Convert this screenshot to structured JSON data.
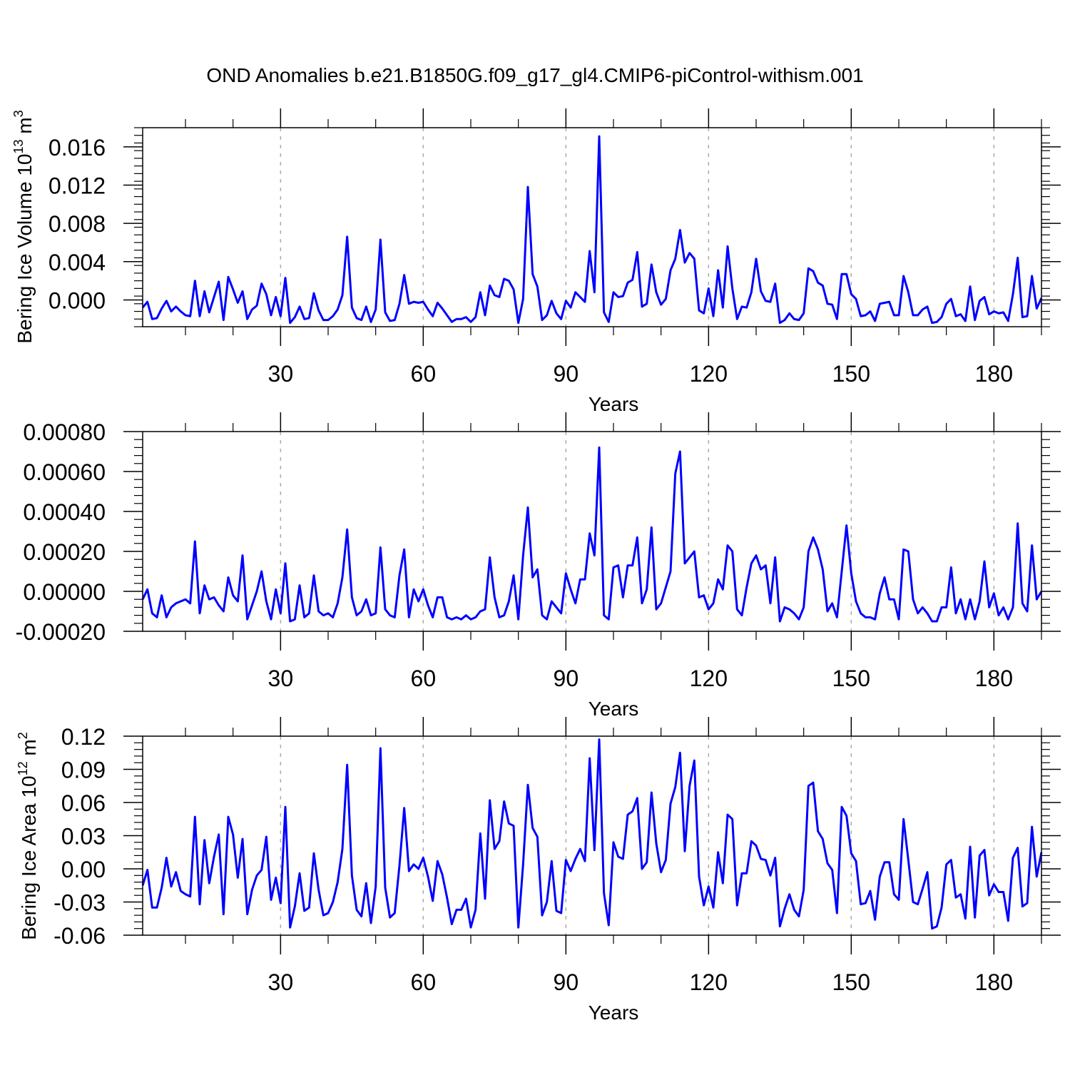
{
  "figure": {
    "title": "OND Anomalies b.e21.B1850G.f09_g17_gl4.CMIP6-piControl-withism.001",
    "line_color": "#0000ff",
    "grid_color": "#aaaaaa"
  },
  "chart_data": [
    {
      "type": "line",
      "ylabel_main": "Bering Ice Volume 10",
      "ylabel_exp": "13",
      "ylabel_unit": "m",
      "ylabel_unit_exp": "3",
      "xlabel": "Years",
      "xlim": [
        1,
        190
      ],
      "ylim": [
        -0.0028,
        0.018
      ],
      "xticks": [
        30,
        60,
        90,
        120,
        150,
        180
      ],
      "xtick_labels": [
        "30",
        "60",
        "90",
        "120",
        "150",
        "180"
      ],
      "yticks": [
        0.0,
        0.004,
        0.008,
        0.012,
        0.016
      ],
      "ytick_labels": [
        "0.000",
        "0.004",
        "0.008",
        "0.012",
        "0.016"
      ],
      "grid": "vertical dashed at major x ticks",
      "series": [
        {
          "x_start": 1,
          "values": [
            -0.0008,
            -0.0002,
            -0.002,
            -0.0019,
            -0.0009,
            -0.0001,
            -0.0012,
            -0.0007,
            -0.0012,
            -0.0016,
            -0.0017,
            0.002,
            -0.0017,
            0.0009,
            -0.0013,
            0.0003,
            0.0019,
            -0.0021,
            0.0024,
            0.0011,
            -0.0003,
            0.0009,
            -0.002,
            -0.001,
            -0.0006,
            0.0017,
            0.0006,
            -0.0016,
            0.0003,
            -0.0017,
            0.0023,
            -0.0024,
            -0.0018,
            -0.0007,
            -0.002,
            -0.0019,
            0.0007,
            -0.0011,
            -0.0021,
            -0.0021,
            -0.0017,
            -0.001,
            0.0005,
            0.0066,
            -0.0008,
            -0.0019,
            -0.0021,
            -0.0007,
            -0.0023,
            -0.001,
            0.0063,
            -0.0013,
            -0.0022,
            -0.0021,
            -0.0004,
            0.0026,
            -0.0004,
            -0.0002,
            -0.0003,
            -0.0002,
            -0.001,
            -0.0017,
            -0.0003,
            -0.0009,
            -0.0016,
            -0.0023,
            -0.002,
            -0.002,
            -0.0018,
            -0.0023,
            -0.0018,
            0.0008,
            -0.0016,
            0.0015,
            0.0005,
            0.0003,
            0.0022,
            0.002,
            0.0011,
            -0.0024,
            0.0001,
            0.0118,
            0.0027,
            0.0014,
            -0.0021,
            -0.0016,
            -0.0001,
            -0.0014,
            -0.002,
            -0.0001,
            -0.0008,
            0.0008,
            0.0003,
            -0.0002,
            0.0051,
            0.0008,
            0.0171,
            -0.0013,
            -0.0023,
            0.0008,
            0.0003,
            0.0004,
            0.0018,
            0.0021,
            0.005,
            -0.0007,
            -0.0004,
            0.0037,
            0.0008,
            -0.0005,
            0.0001,
            0.0031,
            0.0043,
            0.0073,
            0.0039,
            0.0049,
            0.0043,
            -0.0011,
            -0.0014,
            0.0012,
            -0.0017,
            0.0031,
            -0.0008,
            0.0056,
            0.0012,
            -0.002,
            -0.0007,
            -0.0008,
            0.0008,
            0.0043,
            0.0009,
            -0.0001,
            -0.0002,
            0.0017,
            -0.0024,
            -0.0021,
            -0.0014,
            -0.002,
            -0.0021,
            -0.0014,
            0.0033,
            0.003,
            0.0018,
            0.0015,
            -0.0004,
            -0.0005,
            -0.002,
            0.0027,
            0.0027,
            0.0006,
            0.0001,
            -0.0017,
            -0.0016,
            -0.0012,
            -0.0022,
            -0.0004,
            -0.0003,
            -0.0002,
            -0.0016,
            -0.0016,
            0.0025,
            0.0008,
            -0.0016,
            -0.0016,
            -0.001,
            -0.0007,
            -0.0024,
            -0.0023,
            -0.0018,
            -0.0004,
            0.0001,
            -0.0017,
            -0.0015,
            -0.0022,
            0.0014,
            -0.0021,
            -0.0001,
            0.0003,
            -0.0015,
            -0.0012,
            -0.0014,
            -0.0013,
            -0.0022,
            0.0006,
            0.0044,
            -0.0018,
            -0.0017,
            0.0025,
            -0.0009,
            0.0002
          ]
        }
      ]
    },
    {
      "type": "line",
      "ylabel_main": "",
      "xlabel": "Years",
      "xlim": [
        1,
        190
      ],
      "ylim": [
        -0.0002,
        0.0008
      ],
      "xticks": [
        30,
        60,
        90,
        120,
        150,
        180
      ],
      "xtick_labels": [
        "30",
        "60",
        "90",
        "120",
        "150",
        "180"
      ],
      "yticks": [
        -0.0002,
        0.0,
        0.0002,
        0.0004,
        0.0006,
        0.0008
      ],
      "ytick_labels": [
        "-0.00020",
        "0.00000",
        "0.00020",
        "0.00040",
        "0.00060",
        "0.00080"
      ],
      "grid": "vertical dashed at major x ticks",
      "series": [
        {
          "x_start": 1,
          "values": [
            -4e-05,
            1e-05,
            -0.00011,
            -0.00013,
            -2e-05,
            -0.00013,
            -8e-05,
            -6e-05,
            -5e-05,
            -4e-05,
            -6e-05,
            0.00025,
            -0.00011,
            3e-05,
            -4e-05,
            -3e-05,
            -7e-05,
            -0.0001,
            7e-05,
            -2e-05,
            -5e-05,
            0.00018,
            -0.00014,
            -7e-05,
            0.0,
            0.0001,
            -5e-05,
            -0.00014,
            1e-05,
            -0.00011,
            0.00014,
            -0.00015,
            -0.00014,
            3e-05,
            -0.00013,
            -0.00011,
            8e-05,
            -0.0001,
            -0.00012,
            -0.00011,
            -0.00013,
            -6e-05,
            7e-05,
            0.00031,
            -3e-05,
            -0.00012,
            -0.0001,
            -4e-05,
            -0.00012,
            -0.00011,
            0.00022,
            -9e-05,
            -0.00012,
            -0.00013,
            8e-05,
            0.00021,
            -0.00013,
            1e-05,
            -5e-05,
            1e-05,
            -7e-05,
            -0.00013,
            -3e-05,
            -3e-05,
            -0.00013,
            -0.00014,
            -0.00013,
            -0.00014,
            -0.00012,
            -0.00014,
            -0.00013,
            -0.0001,
            -9e-05,
            0.00017,
            -3e-05,
            -0.00013,
            -0.00012,
            -5e-05,
            8e-05,
            -0.00014,
            0.00018,
            0.00042,
            7e-05,
            0.00011,
            -0.00012,
            -0.00014,
            -5e-05,
            -8e-05,
            -0.00011,
            9e-05,
            1e-05,
            -6e-05,
            6e-05,
            6e-05,
            0.00029,
            0.00018,
            0.00072,
            -0.00012,
            -0.00014,
            0.00012,
            0.00013,
            -3e-05,
            0.00013,
            0.00013,
            0.00027,
            -6e-05,
            1e-05,
            0.00032,
            -9e-05,
            -6e-05,
            2e-05,
            0.0001,
            0.00059,
            0.0007,
            0.00014,
            0.00017,
            0.0002,
            -3e-05,
            -2e-05,
            -9e-05,
            -6e-05,
            6e-05,
            1e-05,
            0.00023,
            0.0002,
            -9e-05,
            -0.00012,
            2e-05,
            0.00014,
            0.00018,
            0.00011,
            0.00013,
            -6e-05,
            0.00017,
            -0.00015,
            -8e-05,
            -9e-05,
            -0.00011,
            -0.00014,
            -8e-05,
            0.0002,
            0.00027,
            0.00021,
            0.00011,
            -0.0001,
            -6e-05,
            -0.00013,
            0.0001,
            0.00033,
            9e-05,
            -5e-05,
            -0.00011,
            -0.00013,
            -0.00013,
            -0.00014,
            -1e-05,
            7e-05,
            -4e-05,
            -4e-05,
            -0.00014,
            0.00021,
            0.0002,
            -4e-05,
            -0.00011,
            -8e-05,
            -0.00011,
            -0.00015,
            -0.00015,
            -8e-05,
            -8e-05,
            0.00012,
            -0.00011,
            -4e-05,
            -0.00014,
            -4e-05,
            -0.00014,
            -5e-05,
            0.00015,
            -8e-05,
            -1e-05,
            -0.00012,
            -8e-05,
            -0.00014,
            -8e-05,
            0.00034,
            -6e-05,
            -0.0001,
            0.00023,
            -4e-05,
            0.0
          ]
        }
      ]
    },
    {
      "type": "line",
      "ylabel_main": "Bering Ice Area 10",
      "ylabel_exp": "12",
      "ylabel_unit": "m",
      "ylabel_unit_exp": "2",
      "xlabel": "Years",
      "xlim": [
        1,
        190
      ],
      "ylim": [
        -0.06,
        0.12
      ],
      "xticks": [
        30,
        60,
        90,
        120,
        150,
        180
      ],
      "xtick_labels": [
        "30",
        "60",
        "90",
        "120",
        "150",
        "180"
      ],
      "yticks": [
        -0.06,
        -0.03,
        0.0,
        0.03,
        0.06,
        0.09,
        0.12
      ],
      "ytick_labels": [
        "-0.06",
        "-0.03",
        "0.00",
        "0.03",
        "0.06",
        "0.09",
        "0.12"
      ],
      "grid": "vertical dashed at major x ticks",
      "series": [
        {
          "x_start": 1,
          "values": [
            -0.015,
            -0.001,
            -0.035,
            -0.035,
            -0.017,
            0.01,
            -0.016,
            -0.003,
            -0.02,
            -0.023,
            -0.025,
            0.047,
            -0.032,
            0.026,
            -0.013,
            0.011,
            0.031,
            -0.041,
            0.047,
            0.031,
            -0.008,
            0.027,
            -0.041,
            -0.019,
            -0.006,
            -0.001,
            0.029,
            -0.028,
            -0.008,
            -0.031,
            0.056,
            -0.053,
            -0.034,
            -0.004,
            -0.038,
            -0.035,
            0.014,
            -0.019,
            -0.042,
            -0.04,
            -0.03,
            -0.012,
            0.018,
            0.094,
            -0.006,
            -0.037,
            -0.043,
            -0.013,
            -0.049,
            -0.016,
            0.109,
            -0.017,
            -0.044,
            -0.04,
            0.003,
            0.055,
            -0.002,
            0.004,
            0.0,
            0.01,
            -0.007,
            -0.029,
            0.007,
            -0.005,
            -0.026,
            -0.05,
            -0.037,
            -0.037,
            -0.027,
            -0.053,
            -0.037,
            0.032,
            -0.027,
            0.062,
            0.018,
            0.025,
            0.061,
            0.041,
            0.039,
            -0.053,
            0.004,
            0.076,
            0.037,
            0.029,
            -0.042,
            -0.03,
            0.007,
            -0.038,
            -0.04,
            0.008,
            -0.002,
            0.009,
            0.018,
            0.007,
            0.1,
            0.017,
            0.117,
            -0.022,
            -0.051,
            0.024,
            0.011,
            0.009,
            0.049,
            0.052,
            0.064,
            0.0,
            0.006,
            0.069,
            0.023,
            -0.003,
            0.008,
            0.059,
            0.074,
            0.105,
            0.016,
            0.075,
            0.098,
            -0.007,
            -0.033,
            -0.016,
            -0.035,
            0.015,
            -0.013,
            0.049,
            0.045,
            -0.033,
            -0.004,
            -0.004,
            0.025,
            0.021,
            0.009,
            0.008,
            -0.006,
            0.01,
            -0.052,
            -0.036,
            -0.023,
            -0.037,
            -0.043,
            -0.019,
            0.075,
            0.078,
            0.034,
            0.027,
            0.005,
            -0.001,
            -0.04,
            0.056,
            0.048,
            0.014,
            0.007,
            -0.032,
            -0.031,
            -0.02,
            -0.046,
            -0.007,
            0.006,
            0.006,
            -0.023,
            -0.028,
            0.045,
            0.008,
            -0.03,
            -0.032,
            -0.018,
            -0.003,
            -0.054,
            -0.052,
            -0.035,
            0.004,
            0.008,
            -0.026,
            -0.023,
            -0.045,
            0.02,
            -0.044,
            0.012,
            0.017,
            -0.024,
            -0.014,
            -0.021,
            -0.021,
            -0.047,
            0.01,
            0.019,
            -0.034,
            -0.031,
            0.038,
            -0.007,
            0.015
          ]
        }
      ]
    }
  ]
}
